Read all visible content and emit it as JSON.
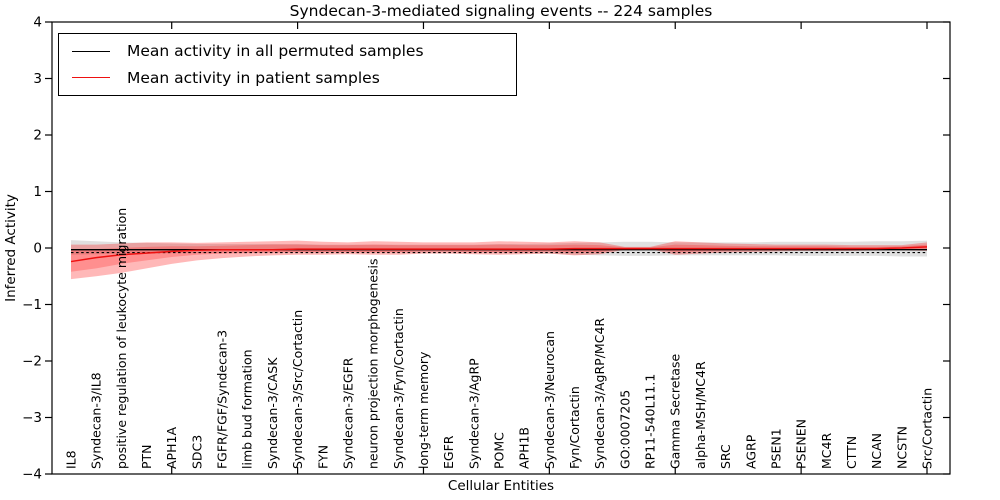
{
  "chart_data": {
    "type": "line",
    "title": "Syndecan-3-mediated signaling events -- 224 samples",
    "xlabel": "Cellular Entities",
    "ylabel": "Inferred Activity",
    "ylim": [
      -4,
      4
    ],
    "ytick_labels": [
      "4",
      "3",
      "2",
      "1",
      "0",
      "−1",
      "−2",
      "−3",
      "−4"
    ],
    "grid": false,
    "legend_position": "upper-left",
    "legend": [
      {
        "label": "Mean activity in all permuted samples",
        "color": "#000000"
      },
      {
        "label": "Mean activity in patient samples",
        "color": "#ee1111"
      }
    ],
    "zero_reference_line": {
      "style": "dashed",
      "value": -0.08,
      "color": "#000000"
    },
    "categories": [
      "IL8",
      "Syndecan-3/IL8",
      "positive regulation of leukocyte migration",
      "PTN",
      "APH1A",
      "SDC3",
      "FGFR/FGF/Syndecan-3",
      "limb bud formation",
      "Syndecan-3/CASK",
      "Syndecan-3/Src/Cortactin",
      "FYN",
      "Syndecan-3/EGFR",
      "neuron projection morphogenesis",
      "Syndecan-3/Fyn/Cortactin",
      "long-term memory",
      "EGFR",
      "Syndecan-3/AgRP",
      "POMC",
      "APH1B",
      "Syndecan-3/Neurocan",
      "Fyn/Cortactin",
      "Syndecan-3/AgRP/MC4R",
      "GO:0007205",
      "RP11-540L11.1",
      "Gamma Secretase",
      "alpha-MSH/MC4R",
      "SRC",
      "AGRP",
      "PSEN1",
      "PSENEN",
      "MC4R",
      "CTTN",
      "NCAN",
      "NCSTN",
      "Src/Cortactin"
    ],
    "series": [
      {
        "name": "Mean activity in all permuted samples",
        "color": "#000000",
        "values": [
          -0.03,
          -0.03,
          -0.03,
          -0.03,
          -0.03,
          -0.03,
          -0.03,
          -0.03,
          -0.03,
          -0.03,
          -0.03,
          -0.03,
          -0.03,
          -0.03,
          -0.03,
          -0.03,
          -0.03,
          -0.03,
          -0.03,
          -0.03,
          -0.03,
          -0.03,
          -0.03,
          -0.03,
          -0.03,
          -0.03,
          -0.03,
          -0.03,
          -0.03,
          -0.03,
          -0.03,
          -0.03,
          -0.03,
          -0.03,
          -0.03
        ]
      },
      {
        "name": "Mean activity in patient samples",
        "color": "#ee1111",
        "values": [
          -0.24,
          -0.17,
          -0.12,
          -0.09,
          -0.06,
          -0.04,
          -0.03,
          -0.03,
          -0.03,
          -0.02,
          -0.02,
          -0.02,
          -0.02,
          -0.02,
          -0.02,
          -0.02,
          -0.02,
          -0.02,
          -0.02,
          -0.02,
          -0.01,
          -0.01,
          -0.01,
          -0.01,
          -0.01,
          -0.01,
          -0.01,
          -0.01,
          -0.01,
          -0.01,
          -0.01,
          -0.01,
          -0.01,
          0.0,
          0.02
        ]
      }
    ],
    "bands": [
      {
        "name": "permuted-samples-range",
        "color": "rgba(0,0,0,0.12)",
        "top": [
          0.14,
          0.12,
          0.1,
          0.09,
          0.08,
          0.07,
          0.07,
          0.07,
          0.07,
          0.07,
          0.06,
          0.06,
          0.06,
          0.06,
          0.06,
          0.06,
          0.06,
          0.07,
          0.07,
          0.08,
          0.09,
          0.1,
          0.11,
          0.11,
          0.1,
          0.1,
          0.1,
          0.1,
          0.11,
          0.11,
          0.11,
          0.11,
          0.12,
          0.12,
          0.13
        ],
        "bottom": [
          -0.12,
          -0.11,
          -0.1,
          -0.1,
          -0.09,
          -0.09,
          -0.08,
          -0.08,
          -0.08,
          -0.08,
          -0.08,
          -0.08,
          -0.08,
          -0.08,
          -0.08,
          -0.08,
          -0.08,
          -0.09,
          -0.09,
          -0.1,
          -0.12,
          -0.13,
          -0.14,
          -0.14,
          -0.13,
          -0.13,
          -0.13,
          -0.13,
          -0.13,
          -0.14,
          -0.14,
          -0.14,
          -0.14,
          -0.15,
          -0.15
        ]
      },
      {
        "name": "patient-samples-range-outer",
        "color": "rgba(255,0,0,0.28)",
        "top": [
          0.06,
          0.06,
          0.08,
          0.1,
          0.1,
          0.09,
          0.1,
          0.11,
          0.12,
          0.13,
          0.11,
          0.1,
          0.12,
          0.11,
          0.1,
          0.1,
          0.1,
          0.12,
          0.11,
          0.1,
          0.12,
          0.1,
          0.02,
          0.02,
          0.12,
          0.1,
          0.08,
          0.07,
          0.06,
          0.06,
          0.06,
          0.05,
          0.05,
          0.05,
          0.1
        ],
        "bottom": [
          -0.55,
          -0.5,
          -0.44,
          -0.36,
          -0.28,
          -0.22,
          -0.18,
          -0.15,
          -0.13,
          -0.12,
          -0.12,
          -0.11,
          -0.12,
          -0.12,
          -0.1,
          -0.1,
          -0.11,
          -0.12,
          -0.11,
          -0.1,
          -0.13,
          -0.11,
          -0.03,
          -0.02,
          -0.12,
          -0.1,
          -0.08,
          -0.07,
          -0.06,
          -0.05,
          -0.05,
          -0.05,
          -0.04,
          -0.04,
          -0.05
        ]
      },
      {
        "name": "patient-samples-range-inner",
        "color": "rgba(255,0,0,0.22)",
        "top": [
          -0.02,
          -0.02,
          0.0,
          0.02,
          0.03,
          0.03,
          0.04,
          0.05,
          0.06,
          0.06,
          0.05,
          0.05,
          0.06,
          0.05,
          0.05,
          0.05,
          0.05,
          0.06,
          0.05,
          0.05,
          0.06,
          0.05,
          0.01,
          0.01,
          0.06,
          0.05,
          0.04,
          0.03,
          0.03,
          0.03,
          0.03,
          0.02,
          0.02,
          0.03,
          0.06
        ],
        "bottom": [
          -0.42,
          -0.36,
          -0.28,
          -0.22,
          -0.16,
          -0.12,
          -0.1,
          -0.09,
          -0.08,
          -0.07,
          -0.07,
          -0.07,
          -0.07,
          -0.07,
          -0.06,
          -0.06,
          -0.07,
          -0.07,
          -0.07,
          -0.06,
          -0.08,
          -0.07,
          -0.02,
          -0.01,
          -0.07,
          -0.06,
          -0.05,
          -0.04,
          -0.04,
          -0.03,
          -0.03,
          -0.03,
          -0.03,
          -0.02,
          -0.03
        ]
      }
    ]
  }
}
